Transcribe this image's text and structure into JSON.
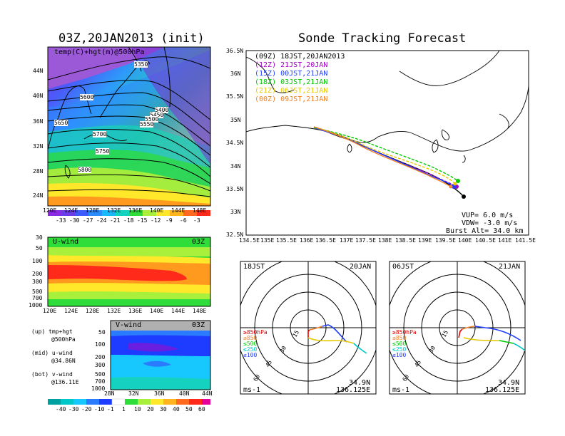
{
  "upper_left": {
    "title": "03Z,20JAN2013 (init)",
    "panel_label": "temp(C)+hgt(m)@500hPa",
    "lat_labels": [
      "44N",
      "40N",
      "36N",
      "32N",
      "28N",
      "24N"
    ],
    "lon_labels": [
      "120E",
      "124E",
      "128E",
      "132E",
      "136E",
      "140E",
      "144E",
      "148E"
    ],
    "contour_labels": [
      "5350",
      "5600",
      "5650",
      "5700",
      "5750",
      "5800",
      "5400",
      "5450",
      "5500",
      "5550"
    ],
    "colorbar_labels": [
      "-33",
      "-30",
      "-27",
      "-24",
      "-21",
      "-18",
      "-15",
      "-12",
      "-9",
      "-6",
      "-3"
    ]
  },
  "uwind": {
    "label": "U-wind",
    "time": "03Z",
    "p_labels": [
      "30",
      "50",
      "100",
      "200",
      "300",
      "500",
      "700",
      "1000"
    ],
    "lon_labels": [
      "120E",
      "124E",
      "128E",
      "132E",
      "136E",
      "140E",
      "144E",
      "148E"
    ]
  },
  "vwind": {
    "label": "V-wind",
    "time": "03Z",
    "p_labels": [
      "50",
      "100",
      "200",
      "300",
      "500",
      "700",
      "1000"
    ],
    "lat_labels": [
      "28N",
      "32N",
      "36N",
      "40N",
      "44N"
    ],
    "colorbar_labels": [
      "-40",
      "-30",
      "-20",
      "-10",
      "-1",
      "1",
      "10",
      "20",
      "30",
      "40",
      "50",
      "60"
    ]
  },
  "legend_notes": {
    "up1": "(up) tmp+hgt",
    "up2": "@500hPa",
    "mid1": "(mid) u-wind",
    "mid2": "@34.86N",
    "bot1": "(bot) v-wind",
    "bot2": "@136.11E"
  },
  "tracking": {
    "title": "Sonde Tracking Forecast",
    "lat_labels": [
      "36.5N",
      "36N",
      "35.5N",
      "35N",
      "34.5N",
      "34N",
      "33.5N",
      "33N",
      "32.5N"
    ],
    "lon_labels": [
      "134.5E",
      "135E",
      "135.5E",
      "136E",
      "136.5E",
      "137E",
      "137.5E",
      "138E",
      "138.5E",
      "139E",
      "139.5E",
      "140E",
      "140.5E",
      "141E",
      "141.5E"
    ],
    "runs": [
      {
        "label": "(09Z)  18JST,20JAN2013",
        "color": "#000000"
      },
      {
        "label": "(12Z)  21JST,20JAN",
        "color": "#a000c8"
      },
      {
        "label": "(15Z)  00JST,21JAN",
        "color": "#1e3cff"
      },
      {
        "label": "(18Z)  03JST,21JAN",
        "color": "#00c800"
      },
      {
        "label": "(21Z)  06JST,21JAN",
        "color": "#e6c800"
      },
      {
        "label": "(00Z)  09JST,21JAN",
        "color": "#f08228"
      }
    ],
    "params": [
      "VUP=  6.0 m/s",
      "VDW= -3.0 m/s",
      "Burst Alt= 34.0 km"
    ]
  },
  "hodo_left": {
    "time": "18JST",
    "date": "20JAN",
    "ring_labels": [
      "15",
      "30",
      "45",
      "60"
    ],
    "legend": [
      "≥850hPa",
      "≤850",
      "≤500",
      "≤250",
      "≤100"
    ],
    "legend_colors": [
      "#e00000",
      "#f08228",
      "#00c800",
      "#00c8c8",
      "#1e3cff"
    ],
    "units": "ms-1",
    "loc1": "34.9N",
    "loc2": "136.125E"
  },
  "hodo_right": {
    "time": "06JST",
    "date": "21JAN",
    "ring_labels": [
      "15",
      "30",
      "45",
      "60"
    ],
    "legend": [
      "≥850hPa",
      "≤850",
      "≤500",
      "≤250",
      "≤100"
    ],
    "legend_colors": [
      "#e00000",
      "#f08228",
      "#00c800",
      "#00c8c8",
      "#1e3cff"
    ],
    "units": "ms-1",
    "loc1": "34.9N",
    "loc2": "136.125E"
  }
}
